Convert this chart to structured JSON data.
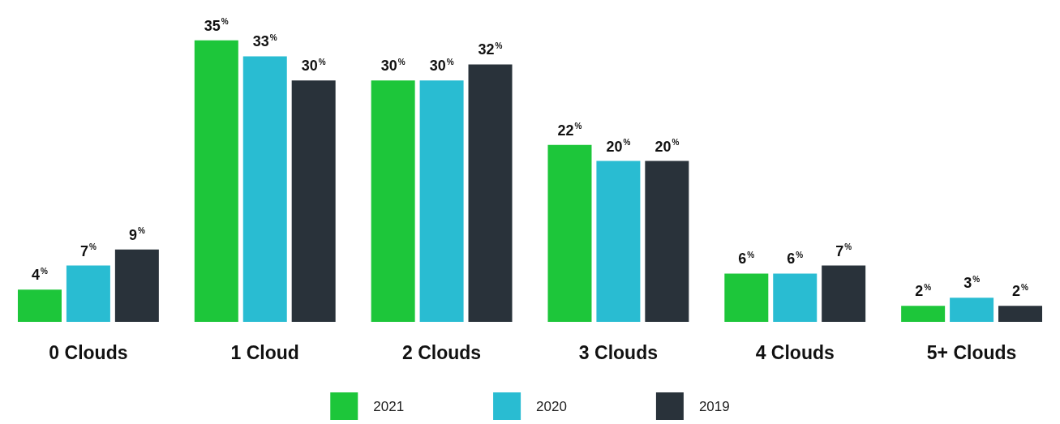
{
  "chart_data": {
    "type": "bar",
    "categories": [
      "0 Clouds",
      "1 Cloud",
      "2 Clouds",
      "3 Clouds",
      "4 Clouds",
      "5+ Clouds"
    ],
    "series": [
      {
        "name": "2021",
        "color": "#1dc63a",
        "values": [
          4,
          35,
          30,
          22,
          6,
          2
        ],
        "value_labels": [
          "4$^{%}$",
          "35$^{%}$",
          "30$^{%}$",
          "22$^{%}$",
          "6$^{%}$",
          "2$^{%}$"
        ]
      },
      {
        "name": "2020",
        "color": "#29bcd2",
        "values": [
          7,
          33,
          30,
          20,
          6,
          3
        ],
        "value_labels": [
          "7$^{%}$",
          "33$^{%}$",
          "30$^{%}$",
          "20$^{%}$",
          "6$^{%}$",
          "3$^{%}$"
        ]
      },
      {
        "name": "2019",
        "color": "#29323a",
        "values": [
          9,
          30,
          32,
          20,
          7,
          2
        ],
        "value_labels": [
          "9$^{%}$",
          "30$^{%}$",
          "32$^{%}$",
          "20$^{%}$",
          "7$^{%}$",
          "2$^{%}$"
        ]
      }
    ],
    "legend": "bottom"
  }
}
